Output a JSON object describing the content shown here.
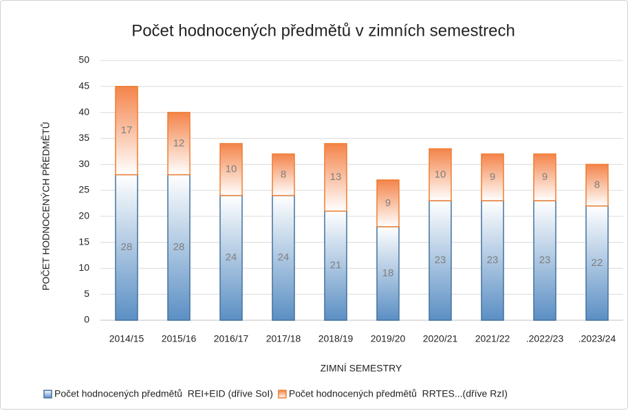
{
  "chart_data": {
    "type": "stacked_bar",
    "title": "Počet hodnocených předmětů v zimních semestrech",
    "x_label": "ZIMNÍ SEMESTRY",
    "y_label": "POČET HODNOCENÝCH PŘEDMĚTŮ",
    "categories": [
      "2014/15",
      "2015/16",
      "2016/17",
      "2017/18",
      "2018/19",
      "2019/20",
      "2020/21",
      "2021/22",
      ".2022/23",
      ".2023/24"
    ],
    "series": [
      {
        "name": "Počet hodnocených předmětů  REI+EID (dříve SoI)",
        "color": "#5b8fc4",
        "values": [
          28,
          28,
          24,
          24,
          21,
          18,
          23,
          23,
          23,
          22
        ]
      },
      {
        "name": "Počet hodnocených předmětů  RRTES...(dříve RzI)",
        "color": "#f4844a",
        "values": [
          17,
          12,
          10,
          8,
          13,
          9,
          10,
          9,
          9,
          8
        ]
      }
    ],
    "ylim": [
      0,
      50
    ],
    "yticks": [
      0,
      5,
      10,
      15,
      20,
      25,
      30,
      35,
      40,
      45,
      50
    ],
    "grid": true,
    "legend": "bottom"
  }
}
